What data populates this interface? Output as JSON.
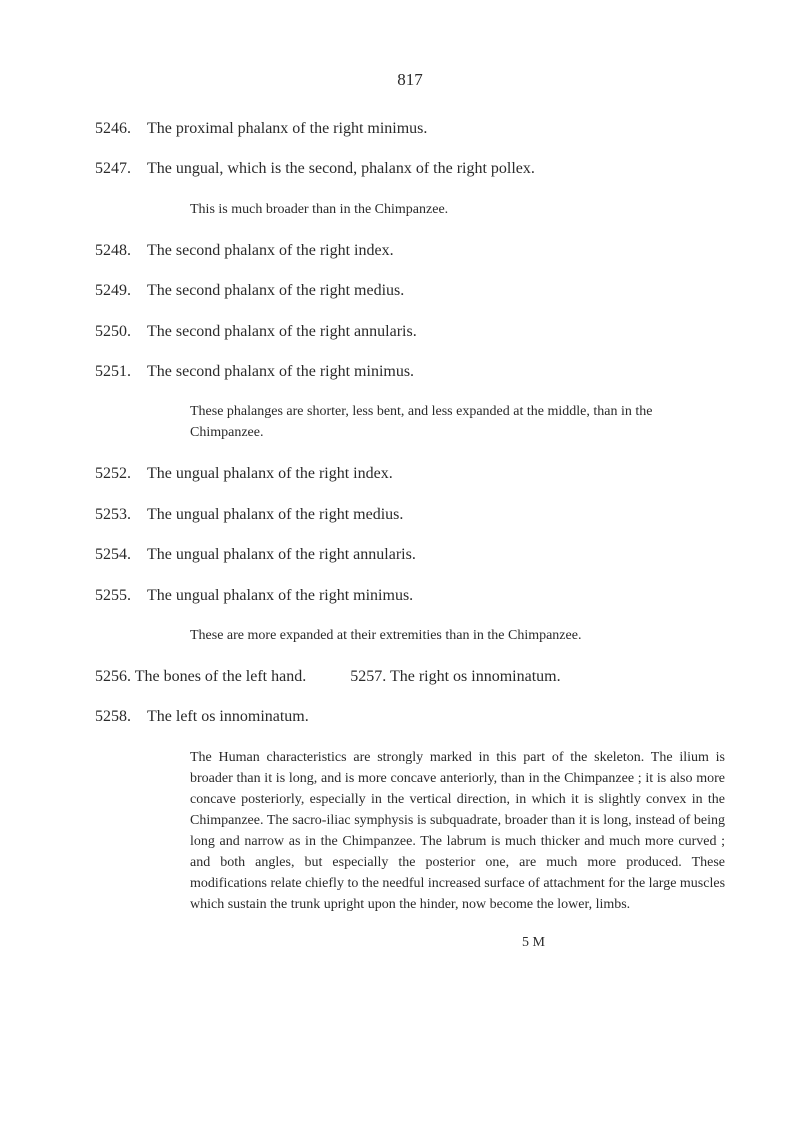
{
  "page_number": "817",
  "entries": [
    {
      "number": "5246.",
      "text": "The proximal phalanx of the right minimus."
    },
    {
      "number": "5247.",
      "text": "The ungual, which is the second, phalanx of the right pollex.",
      "note": "This is much broader than in the Chimpanzee."
    },
    {
      "number": "5248.",
      "text": "The second phalanx of the right index."
    },
    {
      "number": "5249.",
      "text": "The second phalanx of the right medius."
    },
    {
      "number": "5250.",
      "text": "The second phalanx of the right annularis."
    },
    {
      "number": "5251.",
      "text": "The second phalanx of the right minimus.",
      "note": "These phalanges are shorter, less bent, and less expanded at the middle, than in the Chimpanzee."
    },
    {
      "number": "5252.",
      "text": "The ungual phalanx of the right index."
    },
    {
      "number": "5253.",
      "text": "The ungual phalanx of the right medius."
    },
    {
      "number": "5254.",
      "text": "The ungual phalanx of the right annularis."
    },
    {
      "number": "5255.",
      "text": "The ungual phalanx of the right minimus.",
      "note": "These are more expanded at their extremities than in the Chimpanzee."
    }
  ],
  "combined": {
    "number1": "5256.",
    "text1": "The bones of the left hand.",
    "number2": "5257.",
    "text2": "The right os innominatum."
  },
  "final_entry": {
    "number": "5258.",
    "text": "The left os innominatum.",
    "paragraph": "The Human characteristics are strongly marked in this part of the skeleton. The ilium is broader than it is long, and is more concave anteriorly, than in the Chimpanzee ; it is also more concave posteriorly, especially in the vertical direction, in which it is slightly convex in the Chimpanzee. The sacro-iliac symphysis is subquadrate, broader than it is long, instead of being long and narrow as in the Chimpanzee. The labrum is much thicker and much more curved ; and both angles, but especially the posterior one, are much more produced. These modifications relate chiefly to the needful increased surface of attachment for the large muscles which sustain the trunk upright upon the hinder, now become the lower, limbs."
  },
  "footer": "5 M"
}
